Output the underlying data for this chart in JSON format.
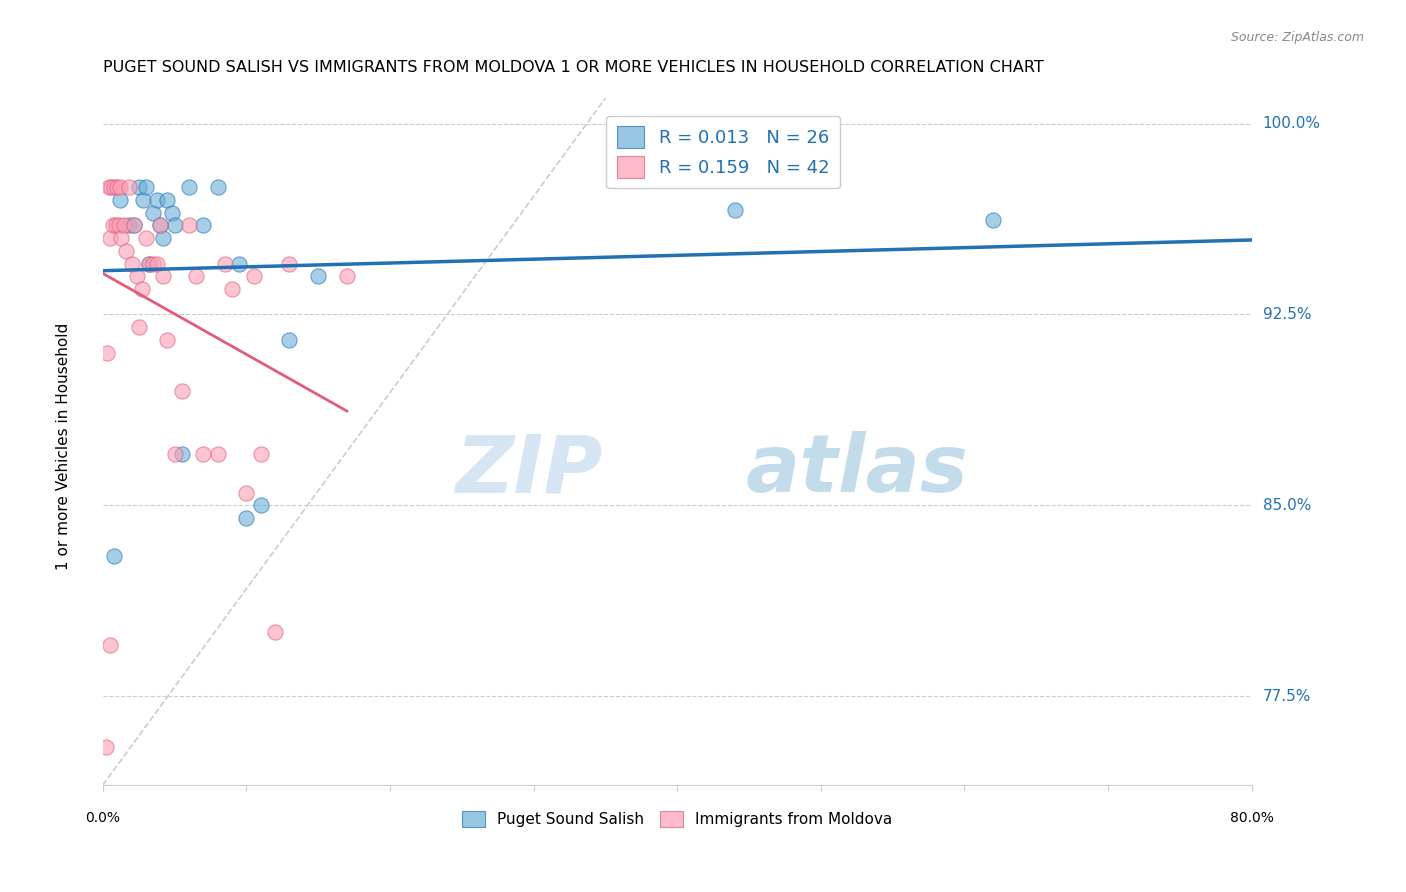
{
  "title": "PUGET SOUND SALISH VS IMMIGRANTS FROM MOLDOVA 1 OR MORE VEHICLES IN HOUSEHOLD CORRELATION CHART",
  "source": "Source: ZipAtlas.com",
  "ylabel": "1 or more Vehicles in Household",
  "ytick_vals": [
    1.0,
    0.925,
    0.85,
    0.775
  ],
  "ytick_labels": [
    "100.0%",
    "92.5%",
    "85.0%",
    "77.5%"
  ],
  "xmin": 0.0,
  "xmax": 0.8,
  "ymin": 0.74,
  "ymax": 1.015,
  "legend_label1": "R = 0.013   N = 26",
  "legend_label2": "R = 0.159   N = 42",
  "blue_color": "#6baed6",
  "pink_color": "#fc9fb5",
  "blue_line_color": "#2171b5",
  "pink_line_color": "#e05c7a",
  "diagonal_color": "#cccccc",
  "blue_scatter_x": [
    0.008,
    0.012,
    0.018,
    0.022,
    0.025,
    0.028,
    0.03,
    0.032,
    0.035,
    0.038,
    0.04,
    0.042,
    0.045,
    0.048,
    0.05,
    0.055,
    0.06,
    0.07,
    0.08,
    0.095,
    0.1,
    0.11,
    0.13,
    0.15,
    0.44,
    0.62
  ],
  "blue_scatter_y": [
    0.83,
    0.97,
    0.96,
    0.96,
    0.975,
    0.97,
    0.975,
    0.945,
    0.965,
    0.97,
    0.96,
    0.955,
    0.97,
    0.965,
    0.96,
    0.87,
    0.975,
    0.96,
    0.975,
    0.945,
    0.845,
    0.85,
    0.915,
    0.94,
    0.966,
    0.962
  ],
  "pink_scatter_x": [
    0.002,
    0.004,
    0.005,
    0.006,
    0.007,
    0.008,
    0.009,
    0.01,
    0.011,
    0.012,
    0.013,
    0.015,
    0.016,
    0.018,
    0.02,
    0.022,
    0.024,
    0.025,
    0.027,
    0.03,
    0.032,
    0.035,
    0.038,
    0.04,
    0.042,
    0.045,
    0.05,
    0.055,
    0.06,
    0.065,
    0.07,
    0.08,
    0.085,
    0.09,
    0.1,
    0.105,
    0.11,
    0.12,
    0.13,
    0.17,
    0.005,
    0.003
  ],
  "pink_scatter_y": [
    0.755,
    0.975,
    0.955,
    0.975,
    0.96,
    0.975,
    0.96,
    0.975,
    0.96,
    0.975,
    0.955,
    0.96,
    0.95,
    0.975,
    0.945,
    0.96,
    0.94,
    0.92,
    0.935,
    0.955,
    0.945,
    0.945,
    0.945,
    0.96,
    0.94,
    0.915,
    0.87,
    0.895,
    0.96,
    0.94,
    0.87,
    0.87,
    0.945,
    0.935,
    0.855,
    0.94,
    0.87,
    0.8,
    0.945,
    0.94,
    0.795,
    0.91
  ],
  "watermark_zip": "ZIP",
  "watermark_atlas": "atlas",
  "blue_dot_size": 120,
  "pink_dot_size": 120,
  "bottom_legend_labels": [
    "Puget Sound Salish",
    "Immigrants from Moldova"
  ]
}
